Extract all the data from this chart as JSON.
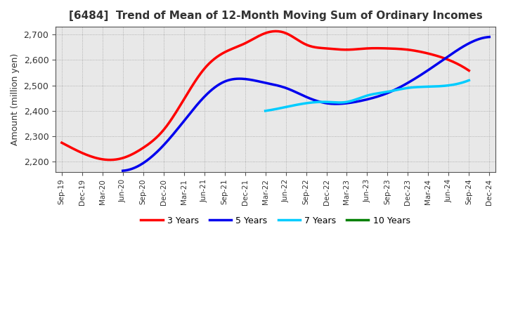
{
  "title": "[6484]  Trend of Mean of 12-Month Moving Sum of Ordinary Incomes",
  "ylabel": "Amount (million yen)",
  "background_color": "#ffffff",
  "plot_bg_color": "#e8e8e8",
  "grid_color": "#999999",
  "title_color": "#333333",
  "x_labels": [
    "Sep-19",
    "Dec-19",
    "Mar-20",
    "Jun-20",
    "Sep-20",
    "Dec-20",
    "Mar-21",
    "Jun-21",
    "Sep-21",
    "Dec-21",
    "Mar-22",
    "Jun-22",
    "Sep-22",
    "Dec-22",
    "Mar-23",
    "Jun-23",
    "Sep-23",
    "Dec-23",
    "Mar-24",
    "Jun-24",
    "Sep-24",
    "Dec-24"
  ],
  "ylim": [
    2160,
    2730
  ],
  "yticks": [
    2200,
    2300,
    2400,
    2500,
    2600,
    2700
  ],
  "series": {
    "3 Years": {
      "color": "#ff0000",
      "values": [
        2275,
        2235,
        2210,
        2215,
        2255,
        2325,
        2445,
        2565,
        2630,
        2665,
        2705,
        2705,
        2660,
        2645,
        2640,
        2645,
        2645,
        2640,
        2625,
        2600,
        2558,
        null
      ]
    },
    "5 Years": {
      "color": "#0000ee",
      "values": [
        null,
        null,
        null,
        2165,
        2195,
        2265,
        2360,
        2455,
        2515,
        2525,
        2510,
        2490,
        2455,
        2430,
        2430,
        2445,
        2470,
        2510,
        2560,
        2615,
        2665,
        2690
      ]
    },
    "7 Years": {
      "color": "#00ccff",
      "values": [
        null,
        null,
        null,
        null,
        null,
        null,
        null,
        null,
        null,
        null,
        2400,
        2415,
        2430,
        2435,
        2435,
        2460,
        2475,
        2490,
        2495,
        2500,
        2520,
        null
      ]
    },
    "10 Years": {
      "color": "#008000",
      "values": [
        null,
        null,
        null,
        null,
        null,
        null,
        null,
        null,
        null,
        null,
        null,
        null,
        null,
        null,
        null,
        null,
        null,
        null,
        null,
        null,
        null,
        null
      ]
    }
  },
  "legend_labels": [
    "3 Years",
    "5 Years",
    "7 Years",
    "10 Years"
  ],
  "legend_colors": [
    "#ff0000",
    "#0000ee",
    "#00ccff",
    "#008000"
  ]
}
